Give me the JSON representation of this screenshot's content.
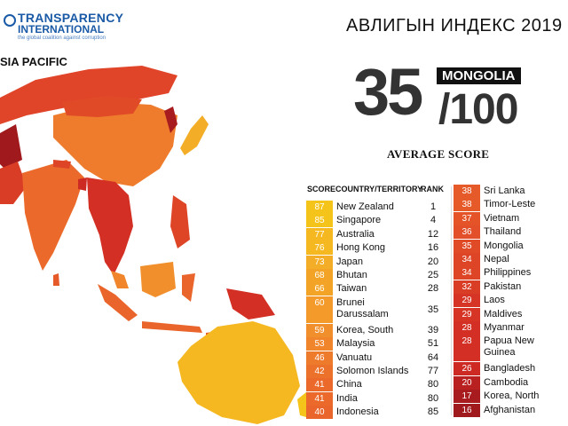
{
  "logo": {
    "line1": "TRANSPARENCY",
    "line2": "INTERNATIONAL",
    "tagline": "the global coalition against corruption",
    "icon": "globe-icon"
  },
  "region": "SIA PACIFIC",
  "title": "АВЛИГЫН ИНДЕКС 2019",
  "highlight": {
    "score": "35",
    "country": "MONGOLIA",
    "out_of": "/100",
    "label": "AVERAGE SCORE"
  },
  "table": {
    "headers": {
      "score": "SCORE",
      "country": "COUNTRY/TERRITORY",
      "rank": "RANK"
    },
    "left": [
      {
        "score": "87",
        "name": "New Zealand",
        "rank": "1",
        "color": "#f5c41b"
      },
      {
        "score": "85",
        "name": "Singapore",
        "rank": "4",
        "color": "#f5c41b"
      },
      {
        "score": "77",
        "name": "Australia",
        "rank": "12",
        "color": "#f5b821"
      },
      {
        "score": "76",
        "name": "Hong Kong",
        "rank": "16",
        "color": "#f5b821"
      },
      {
        "score": "73",
        "name": "Japan",
        "rank": "20",
        "color": "#f3ad27"
      },
      {
        "score": "68",
        "name": "Bhutan",
        "rank": "25",
        "color": "#f3a427"
      },
      {
        "score": "66",
        "name": "Taiwan",
        "rank": "28",
        "color": "#f3a427"
      },
      {
        "score": "60",
        "name": "Brunei Darussalam",
        "line1": "Brunei",
        "line2": "Darussalam",
        "rank": "35",
        "color": "#f39a2a"
      },
      {
        "score": "59",
        "name": "Korea, South",
        "rank": "39",
        "color": "#f18f2c"
      },
      {
        "score": "53",
        "name": "Malaysia",
        "rank": "51",
        "color": "#f0852c"
      },
      {
        "score": "46",
        "name": "Vanuatu",
        "rank": "64",
        "color": "#ee7a2c"
      },
      {
        "score": "42",
        "name": "Solomon Islands",
        "rank": "77",
        "color": "#ec712b"
      },
      {
        "score": "41",
        "name": "China",
        "rank": "80",
        "color": "#eb6a2b"
      },
      {
        "score": "41",
        "name": "India",
        "rank": "80",
        "color": "#eb6a2b"
      },
      {
        "score": "40",
        "name": "Indonesia",
        "rank": "85",
        "color": "#ea652b"
      }
    ],
    "right": [
      {
        "score": "38",
        "name": "Sri Lanka",
        "color": "#e65a2a"
      },
      {
        "score": "38",
        "name": "Timor-Leste",
        "color": "#e65a2a"
      },
      {
        "score": "37",
        "name": "Vietnam",
        "color": "#e45428"
      },
      {
        "score": "36",
        "name": "Thailand",
        "color": "#e24f28"
      },
      {
        "score": "35",
        "name": "Mongolia",
        "color": "#e04a27"
      },
      {
        "score": "34",
        "name": "Nepal",
        "color": "#de4527"
      },
      {
        "score": "34",
        "name": "Philippines",
        "color": "#de4527"
      },
      {
        "score": "32",
        "name": "Pakistan",
        "color": "#da3d26"
      },
      {
        "score": "29",
        "name": "Laos",
        "color": "#d63425"
      },
      {
        "score": "29",
        "name": "Maldives",
        "color": "#d63425"
      },
      {
        "score": "28",
        "name": "Myanmar",
        "color": "#d32f24"
      },
      {
        "score": "28",
        "name": "Papua New Guinea",
        "line1": "Papua New",
        "line2": "Guinea",
        "color": "#d32f24"
      },
      {
        "score": "26",
        "name": "Bangladesh",
        "color": "#cc2a23"
      },
      {
        "score": "20",
        "name": "Cambodia",
        "color": "#b92020"
      },
      {
        "score": "17",
        "name": "Korea, North",
        "color": "#a81b1e"
      },
      {
        "score": "16",
        "name": "Afghanistan",
        "color": "#a0191d"
      }
    ]
  }
}
